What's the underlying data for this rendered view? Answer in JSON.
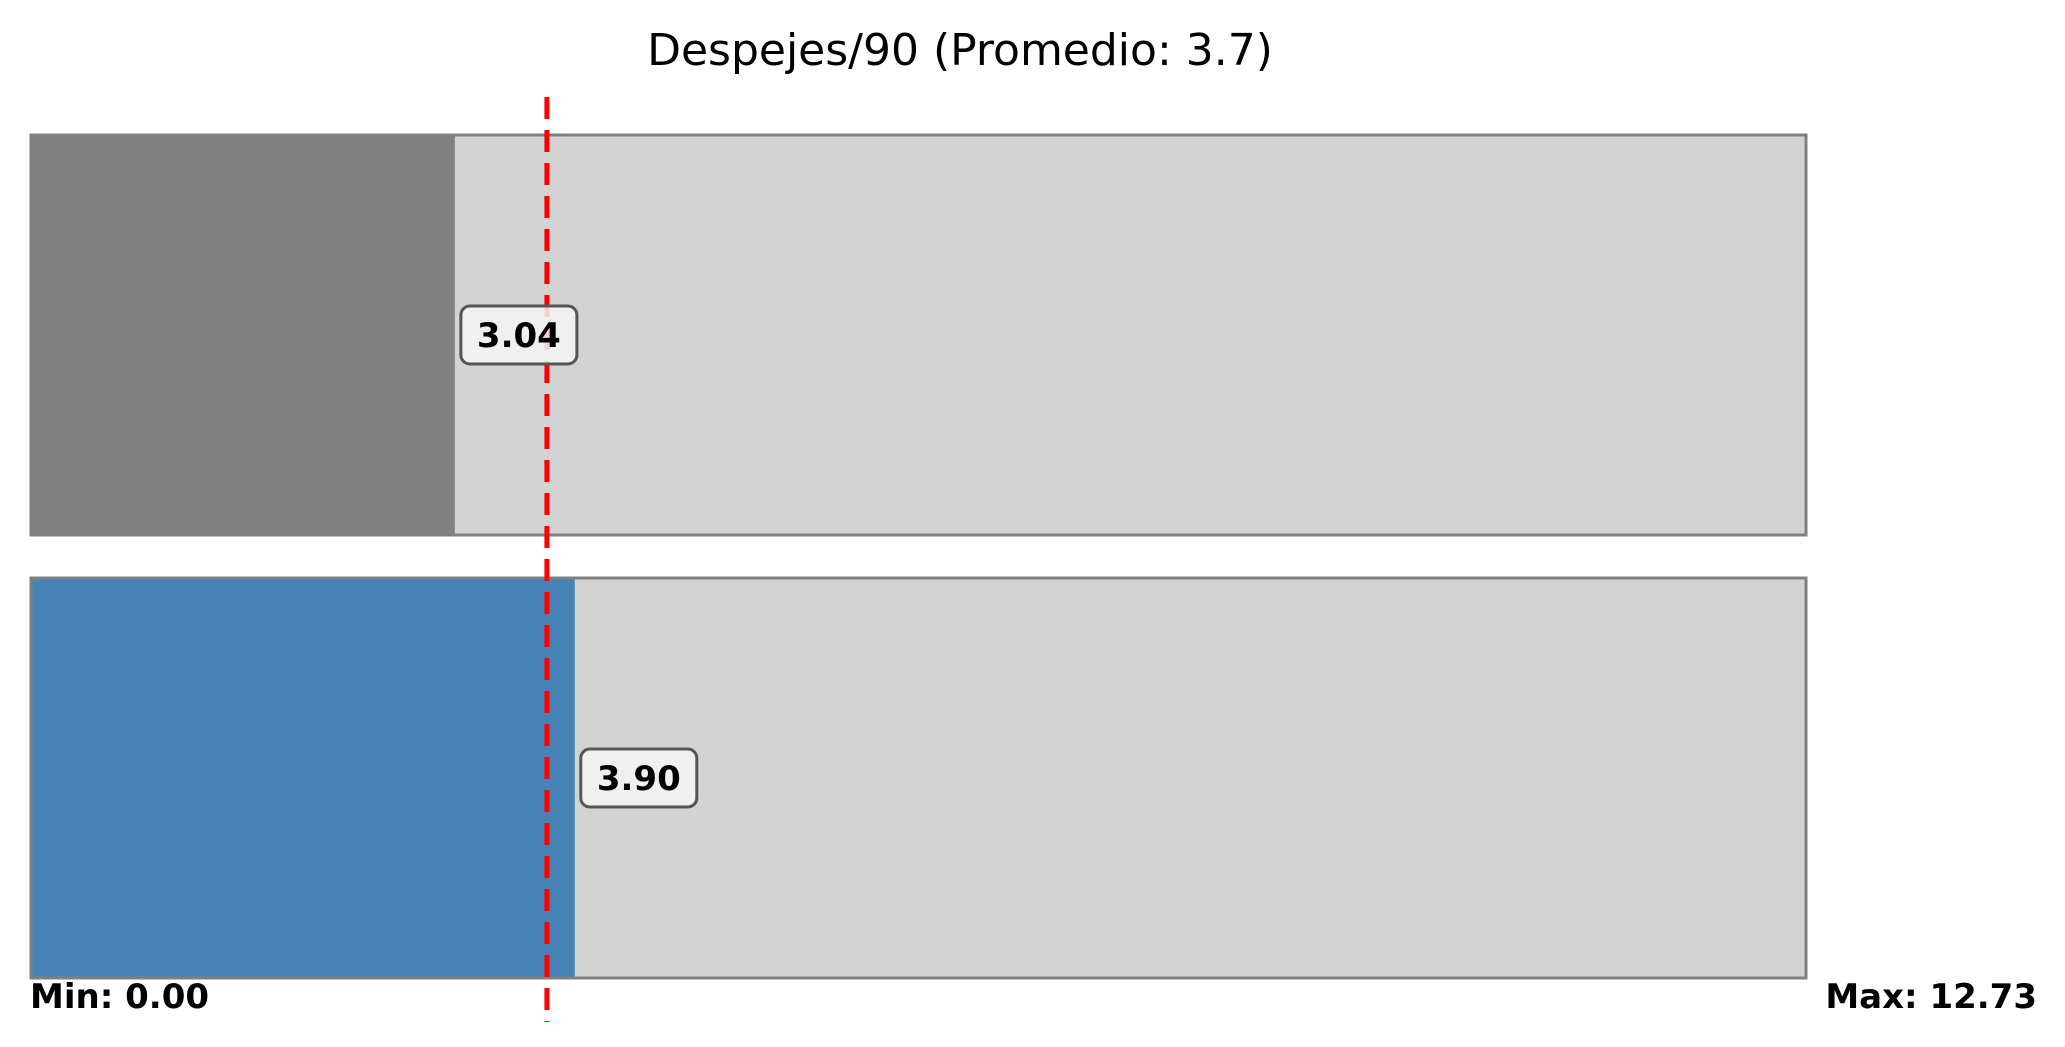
{
  "chart_data": {
    "type": "bar",
    "orientation": "horizontal",
    "title": "Despejes/90 (Promedio: 3.7)",
    "xlim": [
      0,
      12.73
    ],
    "average": 3.7,
    "bars": [
      {
        "value": 3.04,
        "label": "3.04",
        "color": "#808080"
      },
      {
        "value": 3.9,
        "label": "3.90",
        "color": "#4682b4"
      }
    ],
    "min_label": "Min: 0.00",
    "max_label": "Max: 12.73",
    "track_color": "#d3d3d3",
    "track_border_color": "#808080",
    "average_line_color": "#ff0000",
    "grid": false
  }
}
